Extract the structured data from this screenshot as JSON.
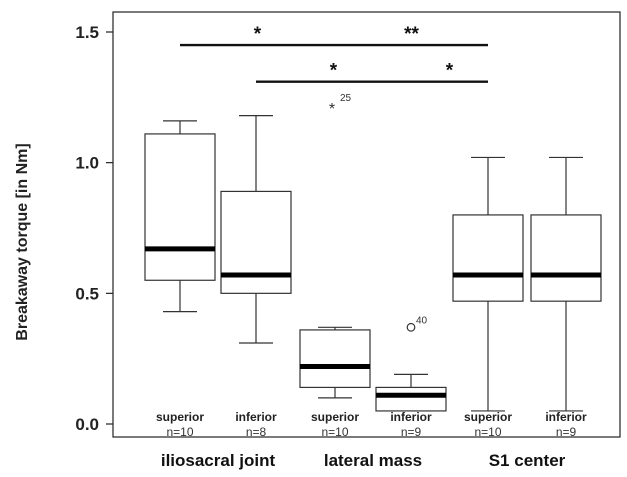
{
  "chart_data": {
    "type": "boxplot",
    "title": "",
    "xlabel": "",
    "ylabel": "Breakaway torque [in Nm]",
    "ylim": [
      -0.04,
      1.58
    ],
    "yticks": [
      0.0,
      0.5,
      1.0,
      1.5
    ],
    "ytick_labels": [
      "0.0",
      "0.5",
      "1.0",
      "1.5"
    ],
    "grid": false,
    "groups": [
      "iliosacral joint",
      "lateral mass",
      "S1 center"
    ],
    "boxes": [
      {
        "group": "iliosacral joint",
        "position": "superior",
        "n_label": "n=10",
        "min": 0.43,
        "q1": 0.55,
        "median": 0.67,
        "q3": 1.11,
        "max": 1.16,
        "outliers": []
      },
      {
        "group": "iliosacral joint",
        "position": "inferior",
        "n_label": "n=8",
        "min": 0.31,
        "q1": 0.5,
        "median": 0.57,
        "q3": 0.89,
        "max": 1.18,
        "outliers": []
      },
      {
        "group": "lateral mass",
        "position": "superior",
        "n_label": "n=10",
        "min": 0.1,
        "q1": 0.14,
        "median": 0.22,
        "q3": 0.36,
        "max": 0.37,
        "outliers": [
          {
            "value": 1.22,
            "label": "25",
            "marker": "star"
          }
        ]
      },
      {
        "group": "lateral mass",
        "position": "inferior",
        "n_label": "n=9",
        "min": 0.05,
        "q1": 0.05,
        "median": 0.11,
        "q3": 0.14,
        "max": 0.19,
        "outliers": [
          {
            "value": 0.37,
            "label": "40",
            "marker": "circle"
          }
        ]
      },
      {
        "group": "S1 center",
        "position": "superior",
        "n_label": "n=10",
        "min": 0.05,
        "q1": 0.47,
        "median": 0.57,
        "q3": 0.8,
        "max": 1.02,
        "outliers": []
      },
      {
        "group": "S1 center",
        "position": "inferior",
        "n_label": "n=9",
        "min": 0.05,
        "q1": 0.47,
        "median": 0.57,
        "q3": 0.8,
        "max": 1.02,
        "outliers": []
      }
    ],
    "significance": [
      {
        "from_box": 0,
        "to_box": 2,
        "y": 1.45,
        "label": "*"
      },
      {
        "from_box": 2,
        "to_box": 4,
        "y": 1.45,
        "label": "**"
      },
      {
        "from_box": 1,
        "to_box": 3,
        "y": 1.31,
        "label": "*"
      },
      {
        "from_box": 3,
        "to_box": 4,
        "y": 1.31,
        "label": "*"
      }
    ]
  }
}
